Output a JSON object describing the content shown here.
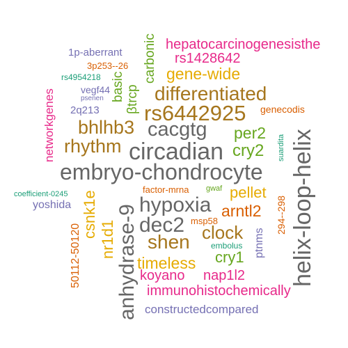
{
  "colors": {
    "magenta": "#e7298a",
    "brown": "#a6761d",
    "gray": "#666666",
    "gold": "#e6ab02",
    "green": "#66a61e",
    "orange": "#d95f02",
    "purple": "#7570b3",
    "teal": "#1b9e77"
  },
  "words": {
    "hepatocarcinogenesisthe": "hepatocarcinogenesisthe",
    "rs1428642": "rs1428642",
    "p1_aberrant": "1p-aberrant",
    "p3_253_26": "3p253--26",
    "rs4954218": "rs4954218",
    "psenen": "psenen",
    "vegf44": "vegf44",
    "q2_213": "2q213",
    "carbonic": "carbonic",
    "basic": "basic",
    "btrcp": "βtrcp",
    "gene_wide": "gene-wide",
    "differentiated": "differentiated",
    "genecodis": "genecodis",
    "networkgenes": "networkgenes",
    "rs6442925": "rs6442925",
    "bhlhb3": "bhlhb3",
    "cacgtg": "cacgtg",
    "per2": "per2",
    "suardita": "suardita",
    "helix_loop_helix": "helix-loop-helix",
    "rhythm": "rhythm",
    "circadian": "circadian",
    "cry2": "cry2",
    "embryo_chondrocyte": "embryo-chondrocyte",
    "coefficient": "coefficient-0245",
    "yoshida": "yoshida",
    "csnk1e": "csnk1e",
    "nr1d1": "nr1d1",
    "anhydrase_9": "anhydrase-9",
    "factor_mrna": "factor-mrna",
    "gwaf": "gwaf",
    "pellet": "pellet",
    "hypoxia": "hypoxia",
    "arntl2": "arntl2",
    "r294_298": "294--298",
    "msp58": "msp58",
    "dec2": "dec2",
    "clock": "clock",
    "ptnms": "ptnms",
    "r50112": "50112-50120",
    "shen": "shen",
    "embolus": "embolus",
    "cry1": "cry1",
    "timeless": "timeless",
    "koyano": "koyano",
    "nap1l2": "nap1l2",
    "immunohistochemically": "immunohistochemically",
    "constructedcompared": "constructedcompared"
  }
}
